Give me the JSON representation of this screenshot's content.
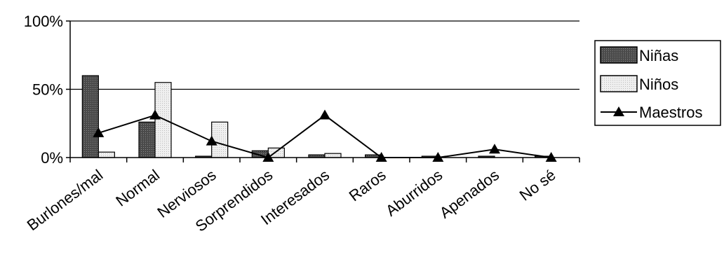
{
  "chart_data": {
    "type": "bar",
    "categories": [
      "Burlones/mal",
      "Normal",
      "Nerviosos",
      "Sorprendidos",
      "Interesados",
      "Raros",
      "Aburridos",
      "Apenados",
      "No sé"
    ],
    "series": [
      {
        "name": "Niñas",
        "kind": "bar",
        "values": [
          60,
          26,
          1,
          5,
          2,
          2,
          1,
          1,
          1
        ]
      },
      {
        "name": "Niños",
        "kind": "bar",
        "values": [
          4,
          55,
          26,
          7,
          3,
          0,
          0,
          0,
          0
        ]
      },
      {
        "name": "Maestros",
        "kind": "line",
        "values": [
          18,
          31,
          12,
          0,
          31,
          0,
          0,
          6,
          0
        ]
      }
    ],
    "y_ticks": [
      "0%",
      "50%",
      "100%"
    ],
    "ylim": [
      0,
      100
    ],
    "grid": "horizontal",
    "legend_position": "right",
    "colors": {
      "ninas_fill": "#5a5a5a",
      "ninos_fill": "#e6e6e6",
      "line": "#000000",
      "axis": "#000000",
      "last_label": "#8a8a8a"
    }
  }
}
